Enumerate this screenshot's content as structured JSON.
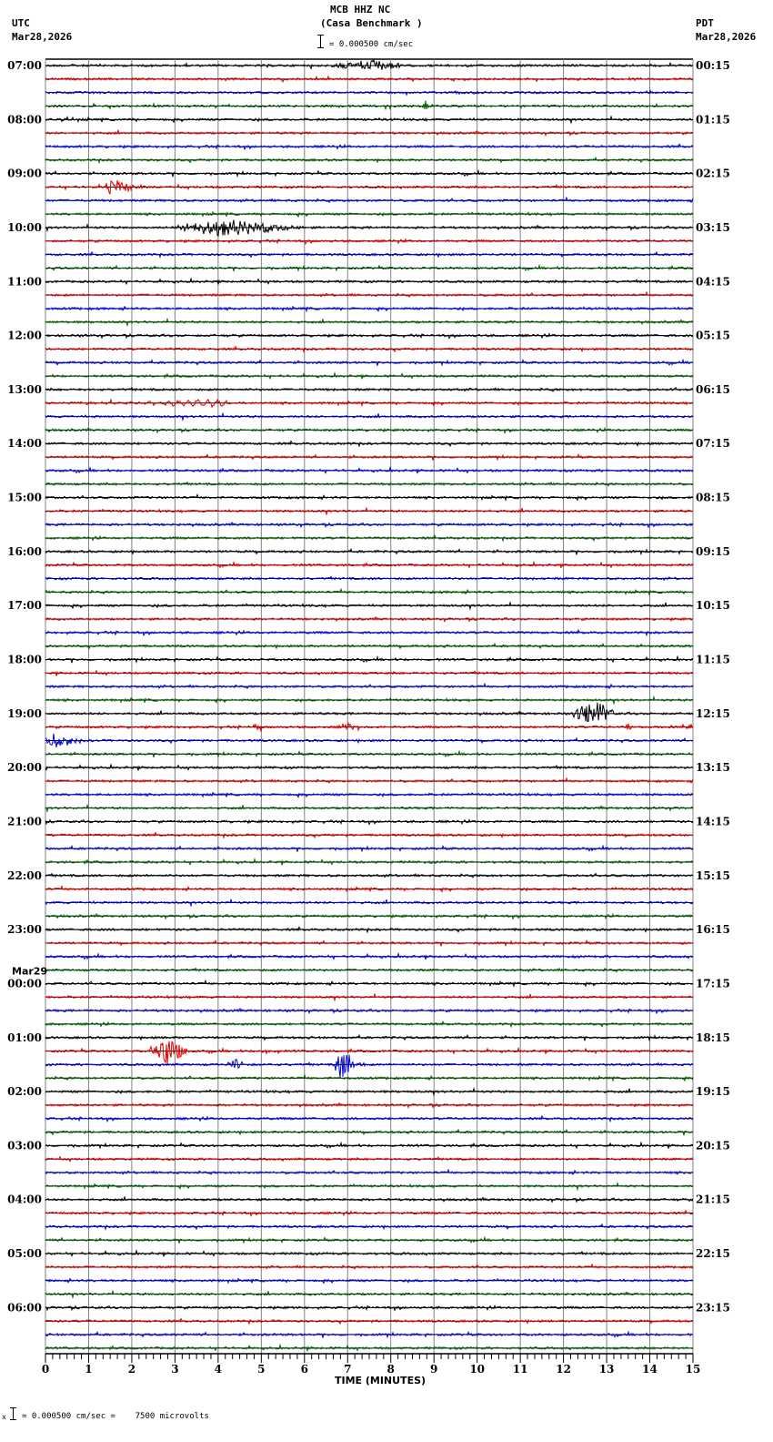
{
  "header": {
    "station": "MCB HHZ NC",
    "site": "(Casa Benchmark )",
    "scale_text": "= 0.000500 cm/sec",
    "left_tz": "UTC",
    "left_date": "Mar28,2026",
    "right_tz": "PDT",
    "right_date": "Mar28,2026"
  },
  "footer": {
    "prefix": "x",
    "scale_text": "= 0.000500 cm/sec =    7500 microvolts"
  },
  "colors": {
    "trace_cycle": [
      "#000000",
      "#e00000",
      "#0000dd",
      "#006000"
    ],
    "grid": "#808080",
    "baseline": "#000000"
  },
  "chart_data": {
    "type": "line",
    "title": "MCB HHZ NC (Casa Benchmark )",
    "xlabel": "TIME (MINUTES)",
    "ylabel": "",
    "xlim": [
      0,
      15
    ],
    "x_ticks": [
      "0",
      "1",
      "2",
      "3",
      "4",
      "5",
      "6",
      "7",
      "8",
      "9",
      "10",
      "11",
      "12",
      "13",
      "14",
      "15"
    ],
    "grid": true,
    "traces_per_hour": 4,
    "trace_count": 96,
    "left_labels": [
      {
        "row": 0,
        "text": "07:00"
      },
      {
        "row": 4,
        "text": "08:00"
      },
      {
        "row": 8,
        "text": "09:00"
      },
      {
        "row": 12,
        "text": "10:00"
      },
      {
        "row": 16,
        "text": "11:00"
      },
      {
        "row": 20,
        "text": "12:00"
      },
      {
        "row": 24,
        "text": "13:00"
      },
      {
        "row": 28,
        "text": "14:00"
      },
      {
        "row": 32,
        "text": "15:00"
      },
      {
        "row": 36,
        "text": "16:00"
      },
      {
        "row": 40,
        "text": "17:00"
      },
      {
        "row": 44,
        "text": "18:00"
      },
      {
        "row": 48,
        "text": "19:00"
      },
      {
        "row": 52,
        "text": "20:00"
      },
      {
        "row": 56,
        "text": "21:00"
      },
      {
        "row": 60,
        "text": "22:00"
      },
      {
        "row": 64,
        "text": "23:00"
      },
      {
        "row": 68,
        "text": "00:00",
        "date": "Mar29"
      },
      {
        "row": 72,
        "text": "01:00"
      },
      {
        "row": 76,
        "text": "02:00"
      },
      {
        "row": 80,
        "text": "03:00"
      },
      {
        "row": 84,
        "text": "04:00"
      },
      {
        "row": 88,
        "text": "05:00"
      },
      {
        "row": 92,
        "text": "06:00"
      }
    ],
    "right_labels": [
      {
        "row": 0,
        "text": "00:15"
      },
      {
        "row": 4,
        "text": "01:15"
      },
      {
        "row": 8,
        "text": "02:15"
      },
      {
        "row": 12,
        "text": "03:15"
      },
      {
        "row": 16,
        "text": "04:15"
      },
      {
        "row": 20,
        "text": "05:15"
      },
      {
        "row": 24,
        "text": "06:15"
      },
      {
        "row": 28,
        "text": "07:15"
      },
      {
        "row": 32,
        "text": "08:15"
      },
      {
        "row": 36,
        "text": "09:15"
      },
      {
        "row": 40,
        "text": "10:15"
      },
      {
        "row": 44,
        "text": "11:15"
      },
      {
        "row": 48,
        "text": "12:15"
      },
      {
        "row": 52,
        "text": "13:15"
      },
      {
        "row": 56,
        "text": "14:15"
      },
      {
        "row": 60,
        "text": "15:15"
      },
      {
        "row": 64,
        "text": "16:15"
      },
      {
        "row": 68,
        "text": "17:15"
      },
      {
        "row": 72,
        "text": "18:15"
      },
      {
        "row": 76,
        "text": "19:15"
      },
      {
        "row": 80,
        "text": "20:15"
      },
      {
        "row": 84,
        "text": "21:15"
      },
      {
        "row": 88,
        "text": "22:15"
      },
      {
        "row": 92,
        "text": "23:15"
      }
    ],
    "events": [
      {
        "row": 0,
        "start_min": 6.6,
        "end_min": 8.2,
        "amp": 6,
        "peak_min": 7.5
      },
      {
        "row": 3,
        "start_min": 8.7,
        "end_min": 8.9,
        "amp": 6,
        "peak_min": 8.8
      },
      {
        "row": 9,
        "start_min": 1.4,
        "end_min": 2.3,
        "amp": 9,
        "peak_min": 1.6
      },
      {
        "row": 12,
        "start_min": 3.0,
        "end_min": 6.0,
        "amp": 9,
        "peak_min": 4.2
      },
      {
        "row": 25,
        "start_min": 0.1,
        "end_min": 4.2,
        "amp": 5,
        "peak_min": 3.9,
        "wavy": true
      },
      {
        "row": 48,
        "start_min": 12.2,
        "end_min": 13.2,
        "amp": 14,
        "peak_min": 12.7
      },
      {
        "row": 49,
        "start_min": 4.7,
        "end_min": 5.0,
        "amp": 4,
        "peak_min": 4.9
      },
      {
        "row": 49,
        "start_min": 6.8,
        "end_min": 7.2,
        "amp": 5,
        "peak_min": 7.0
      },
      {
        "row": 49,
        "start_min": 13.4,
        "end_min": 13.6,
        "amp": 4,
        "peak_min": 13.5
      },
      {
        "row": 49,
        "start_min": 14.8,
        "end_min": 15.0,
        "amp": 5,
        "peak_min": 14.95
      },
      {
        "row": 50,
        "start_min": 0.0,
        "end_min": 0.8,
        "amp": 9,
        "peak_min": 0.3
      },
      {
        "row": 73,
        "start_min": 2.4,
        "end_min": 3.3,
        "amp": 16,
        "peak_min": 2.8
      },
      {
        "row": 73,
        "start_min": 5.0,
        "end_min": 5.2,
        "amp": 5,
        "peak_min": 5.1
      },
      {
        "row": 74,
        "start_min": 4.2,
        "end_min": 4.6,
        "amp": 6,
        "peak_min": 4.4
      },
      {
        "row": 74,
        "start_min": 6.7,
        "end_min": 7.4,
        "amp": 16,
        "peak_min": 6.9
      }
    ]
  }
}
